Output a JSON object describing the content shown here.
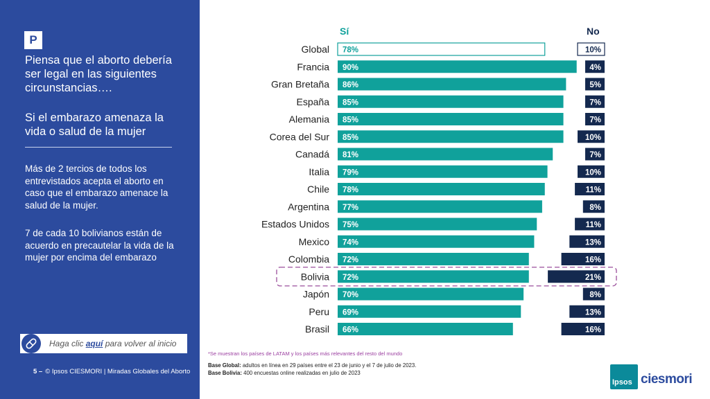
{
  "sidebar": {
    "badge": "P",
    "question_1": "Piensa que el aborto debería ser legal en las siguientes circunstancias….",
    "question_2": "Si el embarazo amenaza la vida o salud de la mujer",
    "text_1": "Más de 2 tercios de todos los entrevistados acepta el aborto en caso que el embarazo amenace la salud de la mujer.",
    "text_2": "7 de cada 10 bolivianos están de acuerdo en precautelar la vida de la mujer por encima del embarazo",
    "link_prefix": "Haga clic ",
    "link_word": "aquí",
    "link_suffix": " para volver al inicio",
    "link_icon": "pill-icon"
  },
  "footer": {
    "page_number": "5 –",
    "credit": "© Ipsos CIESMORI | Miradas Globales del Aborto",
    "note": "*Se muestran los países de LATAM y los países más relevantes del resto del mundo",
    "base_global_label": "Base Global:",
    "base_global_text": " adultos en línea en 29 países entre el 23 de junio y el 7 de julio de 2023.",
    "base_bolivia_label": "Base Bolivia:",
    "base_bolivia_text": " 400 encuestas online realizadas en julio de 2023"
  },
  "logo": {
    "box_text": "Ipsos",
    "text": "ciesmori"
  },
  "colors": {
    "panel": "#2c4b9e",
    "yes_bar": "#10a19b",
    "no_bar": "#14294f",
    "yes_header": "#10a19b",
    "no_header": "#14294f",
    "highlight": "#9b4f9c"
  },
  "chart_data": {
    "type": "bar",
    "orientation": "horizontal",
    "series": [
      {
        "name": "Sí",
        "values": [
          78,
          90,
          86,
          85,
          85,
          85,
          81,
          79,
          78,
          77,
          75,
          74,
          72,
          72,
          70,
          69,
          66
        ]
      },
      {
        "name": "No",
        "values": [
          10,
          4,
          5,
          7,
          7,
          10,
          7,
          10,
          11,
          8,
          11,
          13,
          16,
          21,
          8,
          13,
          16
        ]
      }
    ],
    "categories": [
      "Global",
      "Francia",
      "Gran Bretaña",
      "España",
      "Alemania",
      "Corea del Sur",
      "Canadá",
      "Italia",
      "Chile",
      "Argentina",
      "Estados Unidos",
      "Mexico",
      "Colombia",
      "Bolivia",
      "Japón",
      "Peru",
      "Brasil"
    ],
    "unit": "%",
    "highlight_category": "Bolivia",
    "outline_category": "Global"
  }
}
